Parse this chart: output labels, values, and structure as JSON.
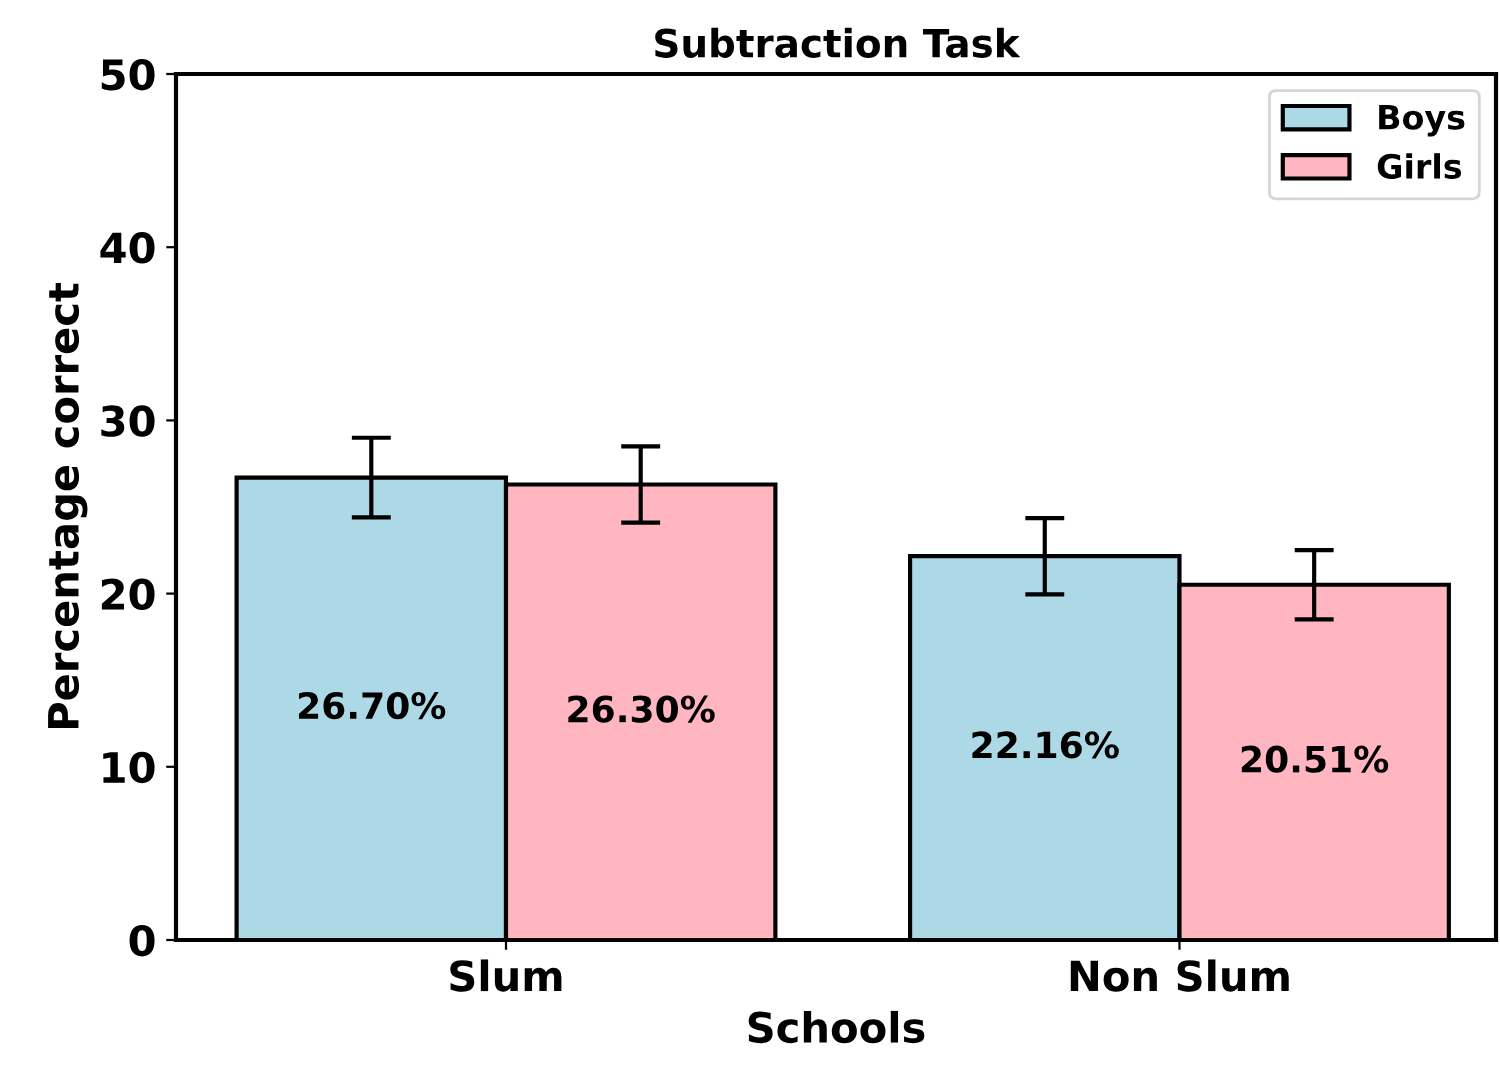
{
  "chart_data": {
    "type": "bar",
    "title": "Subtraction Task",
    "xlabel": "Schools",
    "ylabel": "Percentage correct",
    "categories": [
      "Slum",
      "Non Slum"
    ],
    "series": [
      {
        "name": "Boys",
        "color": "#add8e6",
        "values": [
          26.7,
          22.16
        ],
        "errors": [
          2.3,
          2.2
        ],
        "value_labels": [
          "26.70%",
          "22.16%"
        ]
      },
      {
        "name": "Girls",
        "color": "#ffb6c1",
        "values": [
          26.3,
          20.51
        ],
        "errors": [
          2.2,
          2.0
        ],
        "value_labels": [
          "26.30%",
          "20.51%"
        ]
      }
    ],
    "ylim": [
      0,
      50
    ],
    "yticks": [
      0,
      10,
      20,
      30,
      40,
      50
    ],
    "grid": false,
    "legend": "top right"
  }
}
